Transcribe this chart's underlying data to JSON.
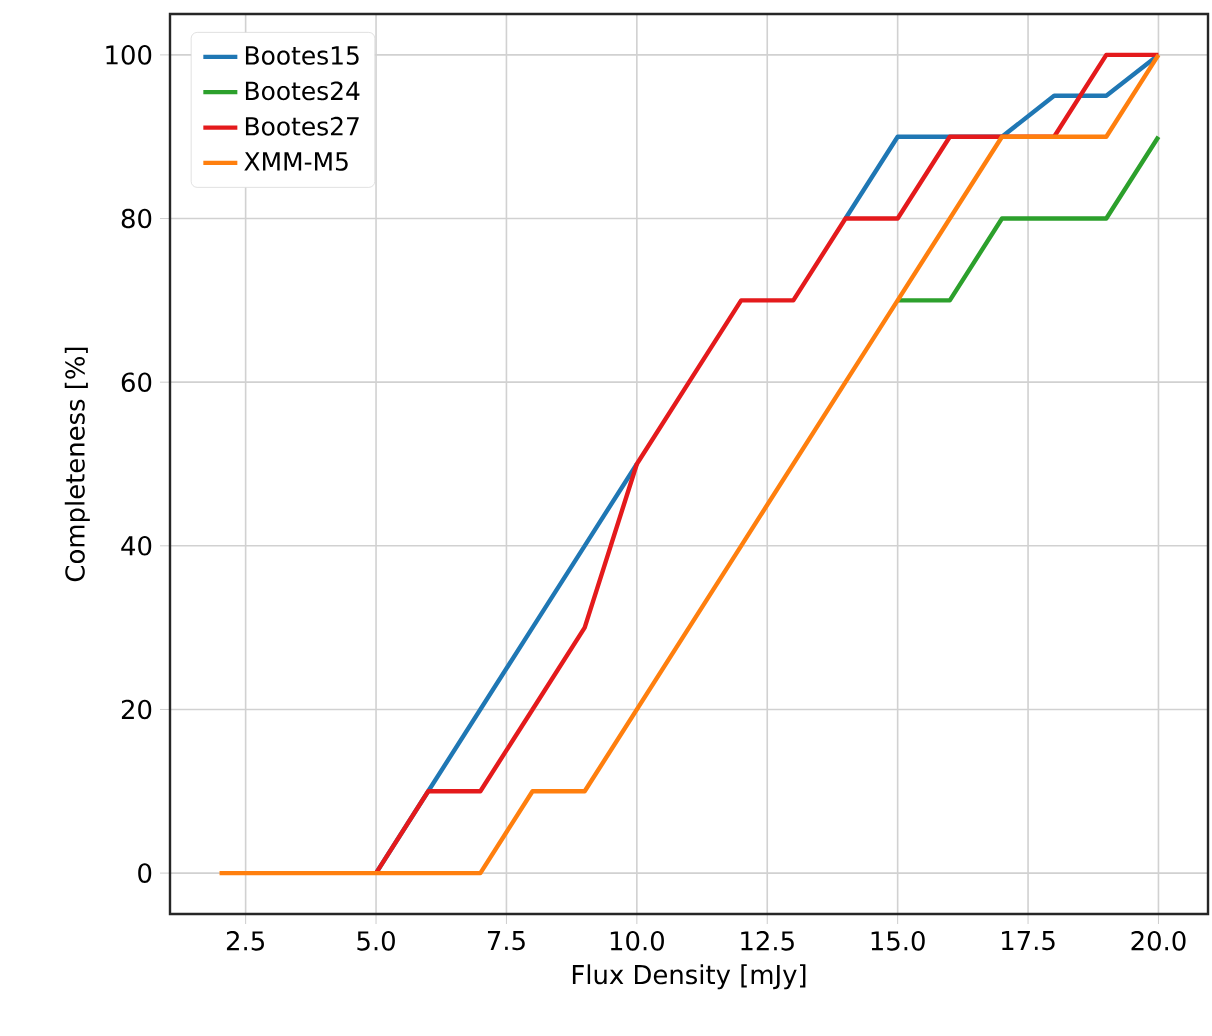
{
  "chart_data": {
    "type": "line",
    "xlabel": "Flux Density [mJy]",
    "ylabel": "Completeness [%]",
    "x": [
      2,
      3,
      4,
      5,
      6,
      7,
      8,
      9,
      10,
      11,
      12,
      13,
      14,
      15,
      16,
      17,
      18,
      19,
      20
    ],
    "series": [
      {
        "name": "Bootes15",
        "color": "#1f77b4",
        "values": [
          null,
          null,
          null,
          0,
          10,
          20,
          30,
          40,
          50,
          null,
          null,
          null,
          80,
          90,
          90,
          90,
          95,
          95,
          100
        ]
      },
      {
        "name": "Bootes24",
        "color": "#2ca02c",
        "values": [
          null,
          null,
          null,
          null,
          null,
          null,
          null,
          null,
          null,
          null,
          null,
          null,
          null,
          70,
          70,
          80,
          80,
          80,
          90
        ]
      },
      {
        "name": "Bootes27",
        "color": "#e41a1c",
        "values": [
          null,
          null,
          null,
          0,
          10,
          10,
          20,
          30,
          50,
          60,
          70,
          70,
          80,
          80,
          90,
          90,
          90,
          100,
          100
        ]
      },
      {
        "name": "XMM-M5",
        "color": "#ff7f0e",
        "values": [
          0,
          0,
          0,
          0,
          0,
          0,
          10,
          10,
          20,
          30,
          40,
          50,
          60,
          70,
          80,
          90,
          90,
          90,
          100
        ]
      }
    ],
    "xlim": [
      1.05,
      20.95
    ],
    "ylim": [
      -5,
      105
    ],
    "xticks": [
      2.5,
      {
        "value": 5,
        "label": "5.0"
      },
      7.5,
      {
        "value": 10,
        "label": "10.0"
      },
      12.5,
      {
        "value": 15,
        "label": "15.0"
      },
      17.5,
      {
        "value": 20,
        "label": "20.0"
      }
    ],
    "yticks": [
      0,
      20,
      40,
      60,
      80,
      100
    ],
    "grid": true,
    "legend": "top left",
    "marker": "none",
    "line_style": "solid"
  }
}
